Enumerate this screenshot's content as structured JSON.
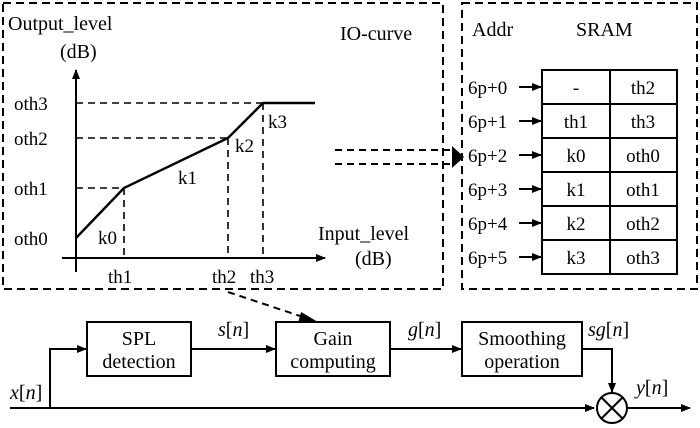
{
  "io_curve": {
    "title": "IO-curve",
    "y_axis_label_1": "Output_level",
    "y_axis_label_2": "(dB)",
    "x_axis_label_1": "Input_level",
    "x_axis_label_2": "(dB)",
    "y_ticks": [
      "oth3",
      "oth2",
      "oth1",
      "oth0"
    ],
    "x_ticks": [
      "th1",
      "th2",
      "th3"
    ],
    "slopes": [
      "k0",
      "k1",
      "k2",
      "k3"
    ]
  },
  "sram": {
    "col_addr": "Addr",
    "col_sram": "SRAM",
    "rows": [
      {
        "addr": "6p+0",
        "left": "-",
        "right": "th2"
      },
      {
        "addr": "6p+1",
        "left": "th1",
        "right": "th3"
      },
      {
        "addr": "6p+2",
        "left": "k0",
        "right": "oth0"
      },
      {
        "addr": "6p+3",
        "left": "k1",
        "right": "oth1"
      },
      {
        "addr": "6p+4",
        "left": "k2",
        "right": "oth2"
      },
      {
        "addr": "6p+5",
        "left": "k3",
        "right": "oth3"
      }
    ]
  },
  "flow": {
    "input": {
      "sym": "x",
      "idx": "n"
    },
    "block1": [
      "SPL",
      "detection"
    ],
    "sig1": {
      "sym": "s",
      "idx": "n"
    },
    "block2": [
      "Gain",
      "computing"
    ],
    "sig2": {
      "sym": "g",
      "idx": "n"
    },
    "block3": [
      "Smoothing",
      "operation"
    ],
    "sig3": {
      "sym": "sg",
      "idx": "n"
    },
    "output": {
      "sym": "y",
      "idx": "n"
    },
    "multiplier_symbol": "×"
  }
}
